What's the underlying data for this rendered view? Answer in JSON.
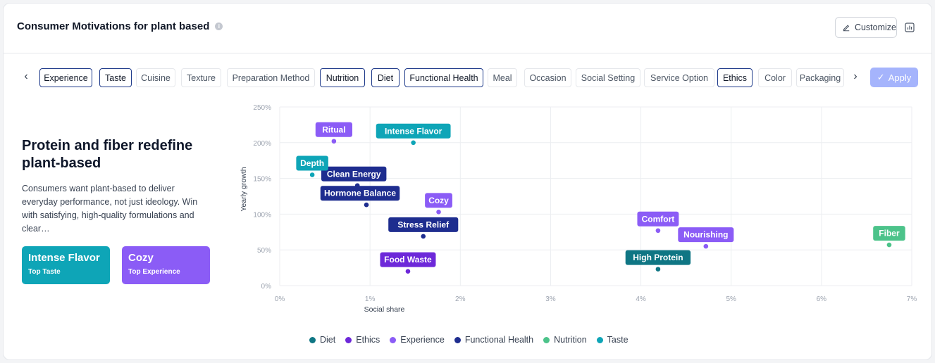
{
  "header": {
    "title": "Consumer Motivations for plant based",
    "customize_label": "Customize"
  },
  "filters": {
    "chips": [
      {
        "label": "Experience",
        "selected": true
      },
      {
        "label": "Taste",
        "selected": true
      },
      {
        "label": "Cuisine",
        "selected": false
      },
      {
        "label": "Texture",
        "selected": false
      },
      {
        "label": "Preparation Method",
        "selected": false
      },
      {
        "label": "Nutrition",
        "selected": true
      },
      {
        "label": "Diet",
        "selected": true
      },
      {
        "label": "Functional Health",
        "selected": true
      },
      {
        "label": "Meal",
        "selected": false
      },
      {
        "label": "Occasion",
        "selected": false
      },
      {
        "label": "Social Setting",
        "selected": false
      },
      {
        "label": "Service Option",
        "selected": false
      },
      {
        "label": "Ethics",
        "selected": true
      },
      {
        "label": "Color",
        "selected": false
      },
      {
        "label": "Packaging",
        "selected": false
      }
    ],
    "apply_label": "Apply"
  },
  "insight": {
    "headline": "Protein and fiber redefine plant-based",
    "description": "Consumers want plant-based to deliver everyday performance, not just ideology. Win with satisfying, high-quality formulations and clear…",
    "kpis": [
      {
        "value": "Intense Flavor",
        "caption": "Top Taste",
        "color": "#0ea5b7"
      },
      {
        "value": "Cozy",
        "caption": "Top Experience",
        "color": "#8b5cf6"
      }
    ]
  },
  "chart_data": {
    "type": "scatter",
    "xlabel": "Social share",
    "ylabel": "Yearly growth",
    "xlim": [
      0,
      7
    ],
    "ylim": [
      0,
      250
    ],
    "x_unit": "%",
    "y_unit": "%",
    "x_ticks": [
      "0%",
      "1%",
      "2%",
      "3%",
      "4%",
      "5%",
      "6%",
      "7%"
    ],
    "y_ticks": [
      "0%",
      "50%",
      "100%",
      "150%",
      "200%",
      "250%"
    ],
    "grid": true,
    "legend_position": "bottom",
    "series": [
      {
        "name": "Diet",
        "color": "#0f7684",
        "points": [
          {
            "label": "High Protein",
            "x": 4.19,
            "y": 23
          }
        ]
      },
      {
        "name": "Ethics",
        "color": "#6d28d9",
        "points": [
          {
            "label": "Food Waste",
            "x": 1.42,
            "y": 20
          }
        ]
      },
      {
        "name": "Experience",
        "color": "#8b5cf6",
        "points": [
          {
            "label": "Ritual",
            "x": 0.6,
            "y": 202
          },
          {
            "label": "Cozy",
            "x": 1.76,
            "y": 103
          },
          {
            "label": "Comfort",
            "x": 4.19,
            "y": 77
          },
          {
            "label": "Nourishing",
            "x": 4.72,
            "y": 55
          }
        ]
      },
      {
        "name": "Functional Health",
        "color": "#1e2d8f",
        "points": [
          {
            "label": "Clean Energy",
            "x": 0.86,
            "y": 140
          },
          {
            "label": "Hormone Balance",
            "x": 0.96,
            "y": 113
          },
          {
            "label": "Stress Relief",
            "x": 1.59,
            "y": 69
          }
        ]
      },
      {
        "name": "Nutrition",
        "color": "#4cc38a",
        "points": [
          {
            "label": "Fiber",
            "x": 6.75,
            "y": 57
          }
        ]
      },
      {
        "name": "Taste",
        "color": "#0ea5b7",
        "points": [
          {
            "label": "Intense Flavor",
            "x": 1.48,
            "y": 200
          },
          {
            "label": "Depth",
            "x": 0.36,
            "y": 155
          }
        ]
      }
    ]
  }
}
